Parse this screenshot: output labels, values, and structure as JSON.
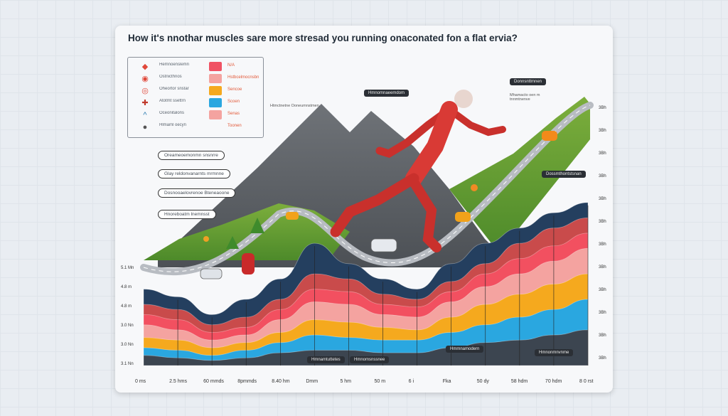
{
  "chart_data": {
    "type": "area",
    "title": "How it's nnothar muscles sare more stresad you running onaconated fon a flat ervia?",
    "x_labels": [
      "0 ms",
      "2.5 hms",
      "60 mmds",
      "8pmmds",
      "8.40 hm",
      "Dmm",
      "5 hm",
      "50 m",
      "6 i",
      "Fka",
      "50 dy",
      "58 hdm",
      "70 hdm",
      "8 0 rst"
    ],
    "left_y_labels": [
      "5.1 Mn",
      "4.8 m",
      "4.8 m",
      "3.0 Nn",
      "3.0 Nn",
      "3.1 Nn"
    ],
    "right_y_labels": [
      "3Bh",
      "3Bh",
      "3Bh",
      "3Bh",
      "3Bh",
      "3Bh",
      "3Bh",
      "3Bh",
      "3Bh",
      "3Bh",
      "3Bh",
      "3Bh"
    ],
    "series": [
      {
        "color": "#243f5f",
        "values": [
          30,
          27,
          20,
          26,
          34,
          48,
          40,
          34,
          30,
          40,
          48,
          54,
          60,
          64
        ]
      },
      {
        "color": "#c94b4b",
        "values": [
          24,
          22,
          16,
          19,
          26,
          36,
          34,
          28,
          26,
          33,
          40,
          48,
          54,
          58
        ]
      },
      {
        "color": "#f25060",
        "values": [
          20,
          18,
          13,
          15,
          22,
          30,
          29,
          24,
          23,
          29,
          36,
          42,
          47,
          52
        ]
      },
      {
        "color": "#f4a3a0",
        "values": [
          16,
          14,
          10,
          12,
          18,
          25,
          24,
          20,
          19,
          25,
          31,
          36,
          41,
          46
        ]
      },
      {
        "color": "#f5a91e",
        "values": [
          11,
          10,
          7,
          9,
          13,
          18,
          17,
          15,
          14,
          19,
          24,
          28,
          32,
          36
        ]
      },
      {
        "color": "#2aa7e0",
        "values": [
          7,
          6,
          4,
          6,
          9,
          12,
          11,
          10,
          10,
          13,
          16,
          19,
          22,
          26
        ]
      },
      {
        "color": "#3c4550",
        "values": [
          4,
          3,
          2,
          3,
          5,
          6,
          6,
          5,
          5,
          7,
          9,
          10,
          12,
          14
        ]
      }
    ],
    "ylim": [
      0,
      100
    ],
    "legend_placement": "top-left",
    "grid": false
  },
  "legend": [
    {
      "icon": "◆",
      "icon_name": "diamond-icon",
      "icon_color": "#e0483a",
      "text": "Hemnoenslemn",
      "swatch": "#f05264",
      "value": "N/A"
    },
    {
      "icon": "◉",
      "icon_name": "target-icon",
      "icon_color": "#e0483a",
      "text": "Ostnicthnos",
      "swatch": "#f4a3a0",
      "value": "Hstbcelmocnsbn"
    },
    {
      "icon": "◎",
      "icon_name": "circle-icon",
      "icon_color": "#e0483a",
      "text": "Oheortor snstar",
      "swatch": "#f5a91e",
      "value": "Sencoe"
    },
    {
      "icon": "✚",
      "icon_name": "cross-icon",
      "icon_color": "#c0392b",
      "text": "Atotmt ssettrn",
      "swatch": "#2aa7e0",
      "value": "Scoen"
    },
    {
      "icon": "^",
      "icon_name": "chevron-up-icon",
      "icon_color": "#2a7ab0",
      "text": "Oceonitalons",
      "swatch": "#f4a3a0",
      "value": "Senas"
    },
    {
      "icon": "●",
      "icon_name": "dot-icon",
      "icon_color": "#555",
      "text": "Hlmaml oecyn",
      "swatch": "",
      "value": "Toonen"
    }
  ],
  "callouts": [
    "Oreameoemonmn snsnrre",
    "Glay reldonvanarnts mrmnne",
    "Dosnooaelovrenoe Bteneaoone",
    "Hnoreboatm lnemnsst"
  ],
  "dark_tags": [
    "Hmnomnaeemdom",
    "Dossmthontstsnan",
    "Hmmnamodern",
    "Hmnonmnvnme",
    "Hmnamtuttetes",
    "Hmnomsnssnee",
    "Donnsnttmnen"
  ],
  "annotations": [
    "Htmctnetne Ooneumnstmen",
    "Mhamacto oen m tnnmtnenve"
  ]
}
